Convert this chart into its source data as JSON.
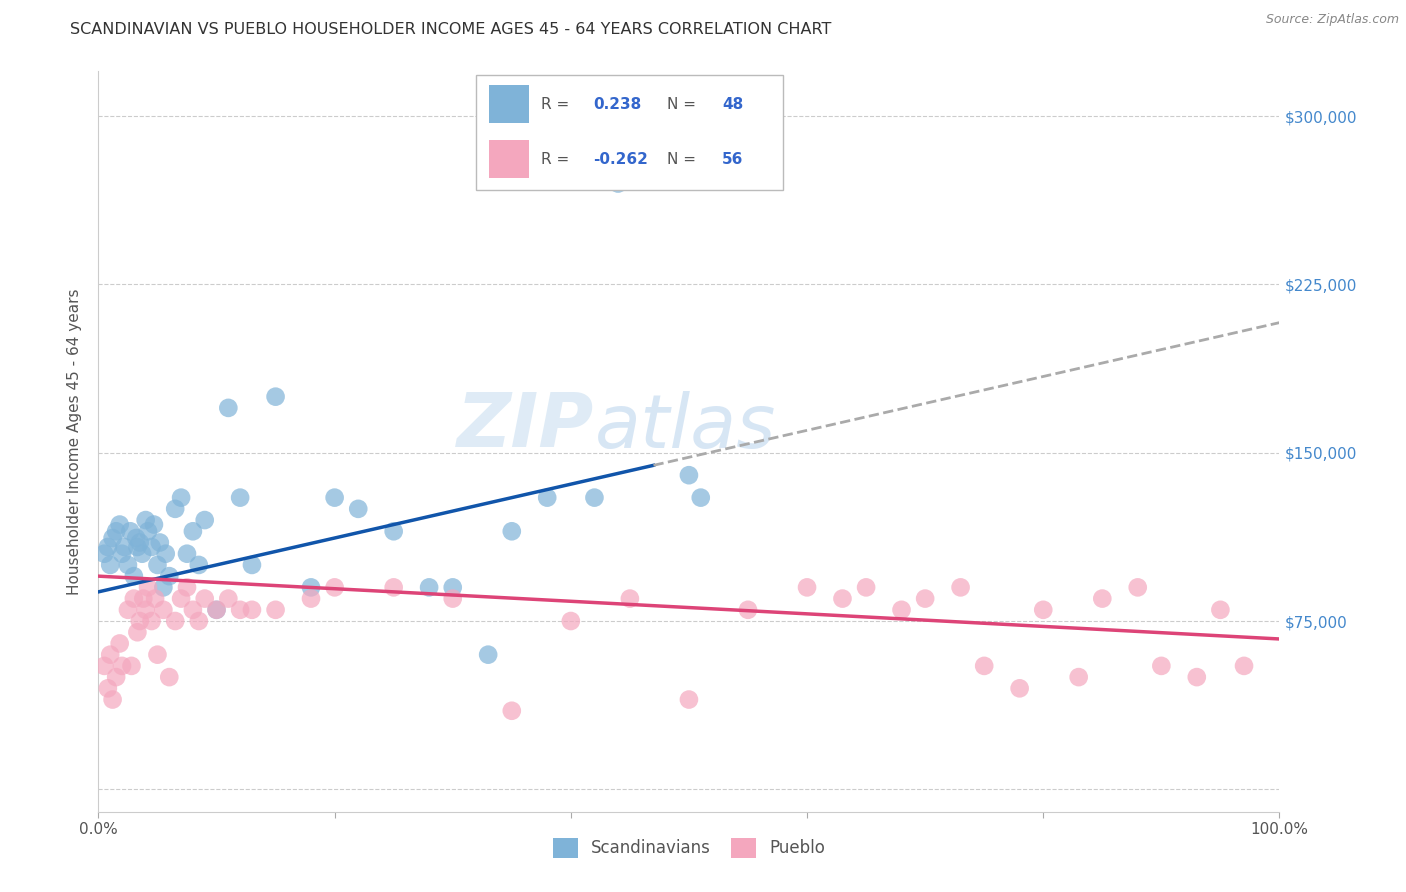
{
  "title": "SCANDINAVIAN VS PUEBLO HOUSEHOLDER INCOME AGES 45 - 64 YEARS CORRELATION CHART",
  "source": "Source: ZipAtlas.com",
  "ylabel": "Householder Income Ages 45 - 64 years",
  "xlim": [
    0,
    1.0
  ],
  "ylim": [
    -10000,
    320000
  ],
  "plot_ylim": [
    0,
    320000
  ],
  "xticks": [
    0.0,
    0.2,
    0.4,
    0.6,
    0.8,
    1.0
  ],
  "xticklabels": [
    "0.0%",
    "",
    "",
    "",
    "",
    "100.0%"
  ],
  "ytick_positions": [
    0,
    75000,
    150000,
    225000,
    300000
  ],
  "right_ytick_labels": [
    "$75,000",
    "$150,000",
    "$225,000",
    "$300,000"
  ],
  "right_ytick_positions": [
    75000,
    150000,
    225000,
    300000
  ],
  "scandinavian_color": "#7fb3d8",
  "pueblo_color": "#f4a7be",
  "trendline_blue": "#1155aa",
  "trendline_pink": "#dd4477",
  "trendline_dashed_color": "#aaaaaa",
  "legend_R_color": "#3366cc",
  "legend_box_color": "#cccccc",
  "legend_R_blue": "0.238",
  "legend_N_blue": "48",
  "legend_R_pink": "-0.262",
  "legend_N_pink": "56",
  "scandinavian_x": [
    0.005,
    0.008,
    0.01,
    0.012,
    0.015,
    0.018,
    0.02,
    0.022,
    0.025,
    0.027,
    0.03,
    0.032,
    0.033,
    0.035,
    0.037,
    0.04,
    0.042,
    0.045,
    0.047,
    0.05,
    0.052,
    0.055,
    0.057,
    0.06,
    0.065,
    0.07,
    0.075,
    0.08,
    0.085,
    0.09,
    0.1,
    0.11,
    0.12,
    0.13,
    0.15,
    0.18,
    0.2,
    0.22,
    0.25,
    0.28,
    0.3,
    0.33,
    0.38,
    0.44,
    0.5,
    0.51,
    0.35,
    0.42
  ],
  "scandinavian_y": [
    105000,
    108000,
    100000,
    112000,
    115000,
    118000,
    105000,
    108000,
    100000,
    115000,
    95000,
    112000,
    108000,
    110000,
    105000,
    120000,
    115000,
    108000,
    118000,
    100000,
    110000,
    90000,
    105000,
    95000,
    125000,
    130000,
    105000,
    115000,
    100000,
    120000,
    80000,
    170000,
    130000,
    100000,
    175000,
    90000,
    130000,
    125000,
    115000,
    90000,
    90000,
    60000,
    130000,
    270000,
    140000,
    130000,
    115000,
    130000
  ],
  "pueblo_x": [
    0.005,
    0.008,
    0.01,
    0.012,
    0.015,
    0.018,
    0.02,
    0.025,
    0.028,
    0.03,
    0.033,
    0.035,
    0.038,
    0.04,
    0.042,
    0.045,
    0.048,
    0.05,
    0.055,
    0.06,
    0.065,
    0.07,
    0.075,
    0.08,
    0.085,
    0.09,
    0.1,
    0.11,
    0.12,
    0.13,
    0.15,
    0.18,
    0.2,
    0.25,
    0.3,
    0.35,
    0.4,
    0.45,
    0.5,
    0.55,
    0.6,
    0.63,
    0.65,
    0.68,
    0.7,
    0.73,
    0.75,
    0.78,
    0.8,
    0.83,
    0.85,
    0.88,
    0.9,
    0.93,
    0.95,
    0.97
  ],
  "pueblo_y": [
    55000,
    45000,
    60000,
    40000,
    50000,
    65000,
    55000,
    80000,
    55000,
    85000,
    70000,
    75000,
    85000,
    80000,
    90000,
    75000,
    85000,
    60000,
    80000,
    50000,
    75000,
    85000,
    90000,
    80000,
    75000,
    85000,
    80000,
    85000,
    80000,
    80000,
    80000,
    85000,
    90000,
    90000,
    85000,
    35000,
    75000,
    85000,
    40000,
    80000,
    90000,
    85000,
    90000,
    80000,
    85000,
    90000,
    55000,
    45000,
    80000,
    50000,
    85000,
    90000,
    55000,
    50000,
    80000,
    55000
  ],
  "blue_line_solid_end": 0.47,
  "blue_line_dash_start": 0.47,
  "blue_line_intercept": 88000,
  "blue_line_slope": 120000,
  "pink_line_intercept": 95000,
  "pink_line_slope": -28000
}
